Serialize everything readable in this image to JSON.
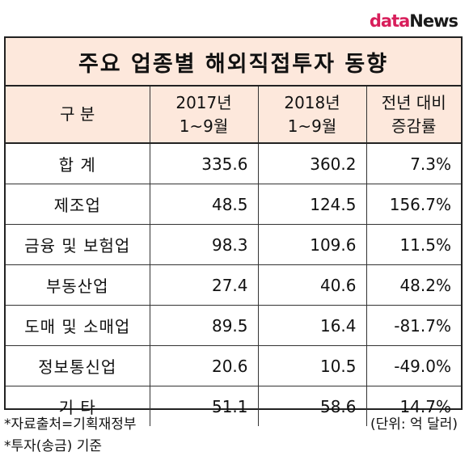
{
  "logo": {
    "part1": "data",
    "part2": "News"
  },
  "title": "주요 업종별 해외직접투자 동향",
  "header": {
    "col0": "구  분",
    "col1_line1": "2017년",
    "col1_line2": "1~9월",
    "col2_line1": "2018년",
    "col2_line2": "1~9월",
    "col3_line1": "전년 대비",
    "col3_line2": "증감률"
  },
  "rows": [
    {
      "label": "합  계",
      "v2017": "335.6",
      "v2018": "360.2",
      "change": "7.3%"
    },
    {
      "label": "제조업",
      "v2017": "48.5",
      "v2018": "124.5",
      "change": "156.7%"
    },
    {
      "label": "금융 및 보험업",
      "v2017": "98.3",
      "v2018": "109.6",
      "change": "11.5%"
    },
    {
      "label": "부동산업",
      "v2017": "27.4",
      "v2018": "40.6",
      "change": "48.2%"
    },
    {
      "label": "도매 및 소매업",
      "v2017": "89.5",
      "v2018": "16.4",
      "change": "-81.7%"
    },
    {
      "label": "정보통신업",
      "v2017": "20.6",
      "v2018": "10.5",
      "change": "-49.0%"
    },
    {
      "label": "기  타",
      "v2017": "51.1",
      "v2018": "58.6",
      "change": "14.7%"
    }
  ],
  "footer": {
    "source": "*자료출처=기획재정부",
    "basis": "*투자(송금) 기준",
    "unit": "(단위: 억 달러)"
  }
}
